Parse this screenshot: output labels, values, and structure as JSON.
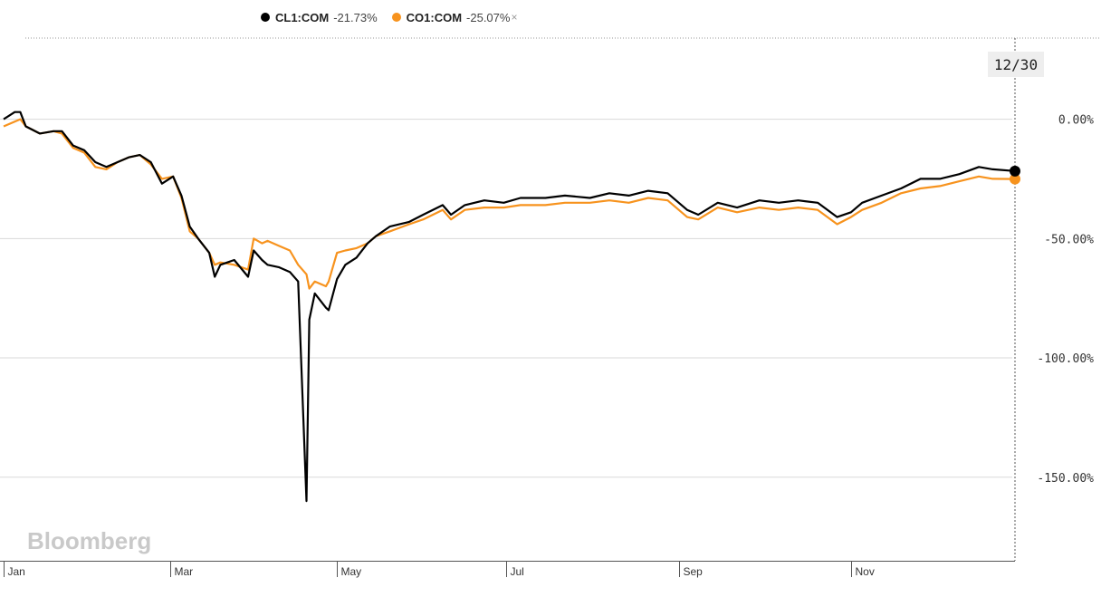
{
  "legend": {
    "series": [
      {
        "name": "CL1:COM",
        "change": "-21.73%",
        "color": "#000000"
      },
      {
        "name": "CO1:COM",
        "change": "-25.07%",
        "color": "#f7931e"
      }
    ],
    "close_icon": "close-icon",
    "close_glyph": "×"
  },
  "crosshair_date": "12/30",
  "watermark": "Bloomberg",
  "chart_data": {
    "type": "line",
    "title": "",
    "xlabel": "",
    "ylabel": "",
    "x_domain": [
      "2020-01-02",
      "2020-12-31"
    ],
    "ylim": [
      -185,
      34
    ],
    "y_ticks": [
      0,
      -50,
      -100,
      -150
    ],
    "y_tick_labels": [
      "0.00%",
      "-50.00%",
      "-100.00%",
      "-150.00%"
    ],
    "x_ticks": [
      {
        "label": "Jan",
        "date": "2020-01-02"
      },
      {
        "label": "Mar",
        "date": "2020-03-02"
      },
      {
        "label": "May",
        "date": "2020-05-01"
      },
      {
        "label": "Jul",
        "date": "2020-07-01"
      },
      {
        "label": "Sep",
        "date": "2020-09-01"
      },
      {
        "label": "Nov",
        "date": "2020-11-02"
      }
    ],
    "grid": true,
    "series": [
      {
        "name": "CL1:COM",
        "color": "#000000",
        "points": [
          [
            "2020-01-02",
            0
          ],
          [
            "2020-01-06",
            3
          ],
          [
            "2020-01-08",
            3
          ],
          [
            "2020-01-10",
            -3
          ],
          [
            "2020-01-15",
            -6
          ],
          [
            "2020-01-20",
            -5
          ],
          [
            "2020-01-23",
            -5
          ],
          [
            "2020-01-27",
            -11
          ],
          [
            "2020-01-31",
            -13
          ],
          [
            "2020-02-04",
            -18
          ],
          [
            "2020-02-08",
            -20
          ],
          [
            "2020-02-12",
            -18
          ],
          [
            "2020-02-16",
            -16
          ],
          [
            "2020-02-20",
            -15
          ],
          [
            "2020-02-24",
            -18
          ],
          [
            "2020-02-28",
            -27
          ],
          [
            "2020-03-03",
            -24
          ],
          [
            "2020-03-06",
            -32
          ],
          [
            "2020-03-09",
            -45
          ],
          [
            "2020-03-12",
            -50
          ],
          [
            "2020-03-16",
            -56
          ],
          [
            "2020-03-18",
            -66
          ],
          [
            "2020-03-20",
            -61
          ],
          [
            "2020-03-25",
            -59
          ],
          [
            "2020-03-30",
            -66
          ],
          [
            "2020-04-01",
            -55
          ],
          [
            "2020-04-04",
            -59
          ],
          [
            "2020-04-06",
            -61
          ],
          [
            "2020-04-10",
            -62
          ],
          [
            "2020-04-14",
            -64
          ],
          [
            "2020-04-17",
            -68
          ],
          [
            "2020-04-20",
            -160
          ],
          [
            "2020-04-21",
            -84
          ],
          [
            "2020-04-23",
            -73
          ],
          [
            "2020-04-27",
            -79
          ],
          [
            "2020-04-28",
            -80
          ],
          [
            "2020-05-01",
            -67
          ],
          [
            "2020-05-04",
            -61
          ],
          [
            "2020-05-08",
            -58
          ],
          [
            "2020-05-12",
            -52
          ],
          [
            "2020-05-15",
            -49
          ],
          [
            "2020-05-20",
            -45
          ],
          [
            "2020-05-27",
            -43
          ],
          [
            "2020-06-01",
            -40
          ],
          [
            "2020-06-08",
            -36
          ],
          [
            "2020-06-11",
            -40
          ],
          [
            "2020-06-16",
            -36
          ],
          [
            "2020-06-23",
            -34
          ],
          [
            "2020-06-30",
            -35
          ],
          [
            "2020-07-06",
            -33
          ],
          [
            "2020-07-15",
            -33
          ],
          [
            "2020-07-22",
            -32
          ],
          [
            "2020-07-31",
            -33
          ],
          [
            "2020-08-07",
            -31
          ],
          [
            "2020-08-14",
            -32
          ],
          [
            "2020-08-21",
            -30
          ],
          [
            "2020-08-28",
            -31
          ],
          [
            "2020-09-04",
            -38
          ],
          [
            "2020-09-08",
            -40
          ],
          [
            "2020-09-15",
            -35
          ],
          [
            "2020-09-22",
            -37
          ],
          [
            "2020-09-30",
            -34
          ],
          [
            "2020-10-07",
            -35
          ],
          [
            "2020-10-14",
            -34
          ],
          [
            "2020-10-21",
            -35
          ],
          [
            "2020-10-28",
            -41
          ],
          [
            "2020-11-02",
            -39
          ],
          [
            "2020-11-06",
            -35
          ],
          [
            "2020-11-13",
            -32
          ],
          [
            "2020-11-20",
            -29
          ],
          [
            "2020-11-27",
            -25
          ],
          [
            "2020-12-04",
            -25
          ],
          [
            "2020-12-11",
            -23
          ],
          [
            "2020-12-18",
            -20
          ],
          [
            "2020-12-23",
            -21
          ],
          [
            "2020-12-31",
            -21.73
          ]
        ]
      },
      {
        "name": "CO1:COM",
        "color": "#f7931e",
        "points": [
          [
            "2020-01-02",
            -3
          ],
          [
            "2020-01-06",
            -1
          ],
          [
            "2020-01-08",
            0
          ],
          [
            "2020-01-10",
            -3
          ],
          [
            "2020-01-15",
            -6
          ],
          [
            "2020-01-20",
            -5
          ],
          [
            "2020-01-23",
            -6
          ],
          [
            "2020-01-27",
            -12
          ],
          [
            "2020-01-31",
            -14
          ],
          [
            "2020-02-04",
            -20
          ],
          [
            "2020-02-08",
            -21
          ],
          [
            "2020-02-12",
            -18
          ],
          [
            "2020-02-16",
            -16
          ],
          [
            "2020-02-20",
            -15
          ],
          [
            "2020-02-24",
            -19
          ],
          [
            "2020-02-28",
            -25
          ],
          [
            "2020-03-03",
            -24
          ],
          [
            "2020-03-06",
            -33
          ],
          [
            "2020-03-09",
            -47
          ],
          [
            "2020-03-12",
            -50
          ],
          [
            "2020-03-16",
            -56
          ],
          [
            "2020-03-18",
            -61
          ],
          [
            "2020-03-20",
            -60
          ],
          [
            "2020-03-25",
            -61
          ],
          [
            "2020-03-30",
            -63
          ],
          [
            "2020-04-01",
            -50
          ],
          [
            "2020-04-04",
            -52
          ],
          [
            "2020-04-06",
            -51
          ],
          [
            "2020-04-10",
            -53
          ],
          [
            "2020-04-14",
            -55
          ],
          [
            "2020-04-17",
            -61
          ],
          [
            "2020-04-20",
            -65
          ],
          [
            "2020-04-21",
            -71
          ],
          [
            "2020-04-23",
            -68
          ],
          [
            "2020-04-27",
            -70
          ],
          [
            "2020-04-28",
            -68
          ],
          [
            "2020-05-01",
            -56
          ],
          [
            "2020-05-04",
            -55
          ],
          [
            "2020-05-08",
            -54
          ],
          [
            "2020-05-12",
            -52
          ],
          [
            "2020-05-15",
            -49
          ],
          [
            "2020-05-20",
            -47
          ],
          [
            "2020-05-27",
            -44
          ],
          [
            "2020-06-01",
            -42
          ],
          [
            "2020-06-08",
            -38
          ],
          [
            "2020-06-11",
            -42
          ],
          [
            "2020-06-16",
            -38
          ],
          [
            "2020-06-23",
            -37
          ],
          [
            "2020-06-30",
            -37
          ],
          [
            "2020-07-06",
            -36
          ],
          [
            "2020-07-15",
            -36
          ],
          [
            "2020-07-22",
            -35
          ],
          [
            "2020-07-31",
            -35
          ],
          [
            "2020-08-07",
            -34
          ],
          [
            "2020-08-14",
            -35
          ],
          [
            "2020-08-21",
            -33
          ],
          [
            "2020-08-28",
            -34
          ],
          [
            "2020-09-04",
            -41
          ],
          [
            "2020-09-08",
            -42
          ],
          [
            "2020-09-15",
            -37
          ],
          [
            "2020-09-22",
            -39
          ],
          [
            "2020-09-30",
            -37
          ],
          [
            "2020-10-07",
            -38
          ],
          [
            "2020-10-14",
            -37
          ],
          [
            "2020-10-21",
            -38
          ],
          [
            "2020-10-28",
            -44
          ],
          [
            "2020-11-02",
            -41
          ],
          [
            "2020-11-06",
            -38
          ],
          [
            "2020-11-13",
            -35
          ],
          [
            "2020-11-20",
            -31
          ],
          [
            "2020-11-27",
            -29
          ],
          [
            "2020-12-04",
            -28
          ],
          [
            "2020-12-11",
            -26
          ],
          [
            "2020-12-18",
            -24
          ],
          [
            "2020-12-23",
            -25
          ],
          [
            "2020-12-31",
            -25.07
          ]
        ]
      }
    ]
  }
}
